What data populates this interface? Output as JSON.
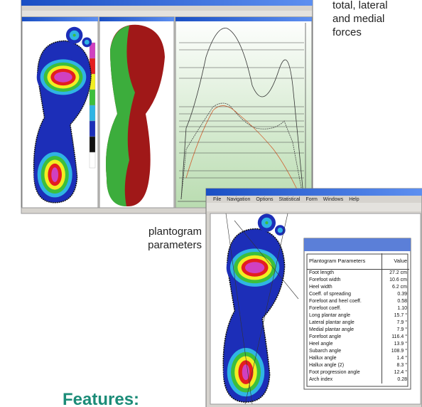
{
  "captions": {
    "forces": [
      "total, lateral",
      "and medial",
      "forces"
    ],
    "plantogram": [
      "plantogram",
      "parameters"
    ],
    "features": "Features:"
  },
  "window2": {
    "menu": [
      "File",
      "Navigation",
      "Options",
      "Statistical",
      "Form",
      "Windows",
      "Help"
    ]
  },
  "table": {
    "header": [
      "Plantogram Parameters",
      "Value"
    ],
    "rows": [
      [
        "Foot length",
        "27.2 cm"
      ],
      [
        "Forefoot width",
        "10.6 cm"
      ],
      [
        "Heel width",
        "6.2 cm"
      ],
      [
        "Coeff. of spreading",
        "0.39"
      ],
      [
        "Forefoot and heel coeff.",
        "0.58"
      ],
      [
        "Forefoot coeff.",
        "1.10"
      ],
      [
        "Long plantar angle",
        "15.7 °"
      ],
      [
        "Lateral plantar angle",
        "7.9 °"
      ],
      [
        "Medial plantar angle",
        "7.9 °"
      ],
      [
        "Forefoot angle",
        "116.4 °"
      ],
      [
        "Heel angle",
        "13.9 °"
      ],
      [
        "Subarch angle",
        "108.9 °"
      ],
      [
        "Hallux angle",
        "1.4 °"
      ],
      [
        "Hallux angle (2)",
        "8.3 °"
      ],
      [
        "Foot progression angle",
        "12.4 °"
      ],
      [
        "Arch index",
        "0.28"
      ]
    ]
  }
}
